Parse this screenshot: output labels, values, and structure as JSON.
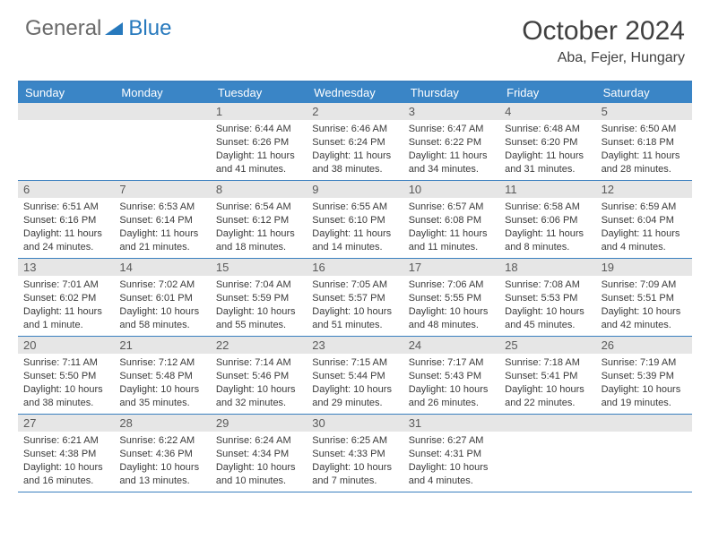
{
  "header": {
    "logo_general": "General",
    "logo_blue": "Blue",
    "month_title": "October 2024",
    "location": "Aba, Fejer, Hungary"
  },
  "colors": {
    "header_bg": "#3a85c6",
    "border": "#3a7fbf",
    "date_bar": "#e6e6e6",
    "text_dark": "#3a3a3a",
    "text_mid": "#5a5a5a",
    "title_color": "#404040"
  },
  "day_names": [
    "Sunday",
    "Monday",
    "Tuesday",
    "Wednesday",
    "Thursday",
    "Friday",
    "Saturday"
  ],
  "weeks": [
    [
      null,
      null,
      {
        "n": "1",
        "sr": "Sunrise: 6:44 AM",
        "ss": "Sunset: 6:26 PM",
        "dl": "Daylight: 11 hours and 41 minutes."
      },
      {
        "n": "2",
        "sr": "Sunrise: 6:46 AM",
        "ss": "Sunset: 6:24 PM",
        "dl": "Daylight: 11 hours and 38 minutes."
      },
      {
        "n": "3",
        "sr": "Sunrise: 6:47 AM",
        "ss": "Sunset: 6:22 PM",
        "dl": "Daylight: 11 hours and 34 minutes."
      },
      {
        "n": "4",
        "sr": "Sunrise: 6:48 AM",
        "ss": "Sunset: 6:20 PM",
        "dl": "Daylight: 11 hours and 31 minutes."
      },
      {
        "n": "5",
        "sr": "Sunrise: 6:50 AM",
        "ss": "Sunset: 6:18 PM",
        "dl": "Daylight: 11 hours and 28 minutes."
      }
    ],
    [
      {
        "n": "6",
        "sr": "Sunrise: 6:51 AM",
        "ss": "Sunset: 6:16 PM",
        "dl": "Daylight: 11 hours and 24 minutes."
      },
      {
        "n": "7",
        "sr": "Sunrise: 6:53 AM",
        "ss": "Sunset: 6:14 PM",
        "dl": "Daylight: 11 hours and 21 minutes."
      },
      {
        "n": "8",
        "sr": "Sunrise: 6:54 AM",
        "ss": "Sunset: 6:12 PM",
        "dl": "Daylight: 11 hours and 18 minutes."
      },
      {
        "n": "9",
        "sr": "Sunrise: 6:55 AM",
        "ss": "Sunset: 6:10 PM",
        "dl": "Daylight: 11 hours and 14 minutes."
      },
      {
        "n": "10",
        "sr": "Sunrise: 6:57 AM",
        "ss": "Sunset: 6:08 PM",
        "dl": "Daylight: 11 hours and 11 minutes."
      },
      {
        "n": "11",
        "sr": "Sunrise: 6:58 AM",
        "ss": "Sunset: 6:06 PM",
        "dl": "Daylight: 11 hours and 8 minutes."
      },
      {
        "n": "12",
        "sr": "Sunrise: 6:59 AM",
        "ss": "Sunset: 6:04 PM",
        "dl": "Daylight: 11 hours and 4 minutes."
      }
    ],
    [
      {
        "n": "13",
        "sr": "Sunrise: 7:01 AM",
        "ss": "Sunset: 6:02 PM",
        "dl": "Daylight: 11 hours and 1 minute."
      },
      {
        "n": "14",
        "sr": "Sunrise: 7:02 AM",
        "ss": "Sunset: 6:01 PM",
        "dl": "Daylight: 10 hours and 58 minutes."
      },
      {
        "n": "15",
        "sr": "Sunrise: 7:04 AM",
        "ss": "Sunset: 5:59 PM",
        "dl": "Daylight: 10 hours and 55 minutes."
      },
      {
        "n": "16",
        "sr": "Sunrise: 7:05 AM",
        "ss": "Sunset: 5:57 PM",
        "dl": "Daylight: 10 hours and 51 minutes."
      },
      {
        "n": "17",
        "sr": "Sunrise: 7:06 AM",
        "ss": "Sunset: 5:55 PM",
        "dl": "Daylight: 10 hours and 48 minutes."
      },
      {
        "n": "18",
        "sr": "Sunrise: 7:08 AM",
        "ss": "Sunset: 5:53 PM",
        "dl": "Daylight: 10 hours and 45 minutes."
      },
      {
        "n": "19",
        "sr": "Sunrise: 7:09 AM",
        "ss": "Sunset: 5:51 PM",
        "dl": "Daylight: 10 hours and 42 minutes."
      }
    ],
    [
      {
        "n": "20",
        "sr": "Sunrise: 7:11 AM",
        "ss": "Sunset: 5:50 PM",
        "dl": "Daylight: 10 hours and 38 minutes."
      },
      {
        "n": "21",
        "sr": "Sunrise: 7:12 AM",
        "ss": "Sunset: 5:48 PM",
        "dl": "Daylight: 10 hours and 35 minutes."
      },
      {
        "n": "22",
        "sr": "Sunrise: 7:14 AM",
        "ss": "Sunset: 5:46 PM",
        "dl": "Daylight: 10 hours and 32 minutes."
      },
      {
        "n": "23",
        "sr": "Sunrise: 7:15 AM",
        "ss": "Sunset: 5:44 PM",
        "dl": "Daylight: 10 hours and 29 minutes."
      },
      {
        "n": "24",
        "sr": "Sunrise: 7:17 AM",
        "ss": "Sunset: 5:43 PM",
        "dl": "Daylight: 10 hours and 26 minutes."
      },
      {
        "n": "25",
        "sr": "Sunrise: 7:18 AM",
        "ss": "Sunset: 5:41 PM",
        "dl": "Daylight: 10 hours and 22 minutes."
      },
      {
        "n": "26",
        "sr": "Sunrise: 7:19 AM",
        "ss": "Sunset: 5:39 PM",
        "dl": "Daylight: 10 hours and 19 minutes."
      }
    ],
    [
      {
        "n": "27",
        "sr": "Sunrise: 6:21 AM",
        "ss": "Sunset: 4:38 PM",
        "dl": "Daylight: 10 hours and 16 minutes."
      },
      {
        "n": "28",
        "sr": "Sunrise: 6:22 AM",
        "ss": "Sunset: 4:36 PM",
        "dl": "Daylight: 10 hours and 13 minutes."
      },
      {
        "n": "29",
        "sr": "Sunrise: 6:24 AM",
        "ss": "Sunset: 4:34 PM",
        "dl": "Daylight: 10 hours and 10 minutes."
      },
      {
        "n": "30",
        "sr": "Sunrise: 6:25 AM",
        "ss": "Sunset: 4:33 PM",
        "dl": "Daylight: 10 hours and 7 minutes."
      },
      {
        "n": "31",
        "sr": "Sunrise: 6:27 AM",
        "ss": "Sunset: 4:31 PM",
        "dl": "Daylight: 10 hours and 4 minutes."
      },
      null,
      null
    ]
  ]
}
